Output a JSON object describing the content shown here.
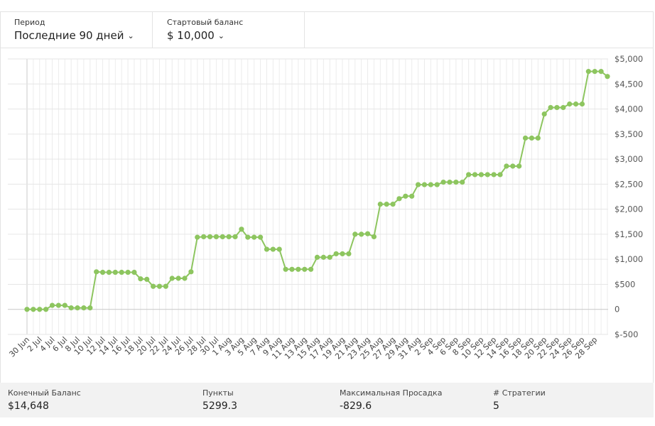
{
  "filters": {
    "period": {
      "label": "Период",
      "value": "Последние 90 дней"
    },
    "start_balance": {
      "label": "Стартовый баланс",
      "value": "$ 10,000"
    }
  },
  "stats": [
    {
      "label": "Конечный Баланс",
      "value": "$14,648"
    },
    {
      "label": "Пункты",
      "value": "5299.3"
    },
    {
      "label": "Максимальная Просадка",
      "value": "-829.6"
    },
    {
      "label": "# Стратегии",
      "value": "5"
    }
  ],
  "chart_data": {
    "type": "line",
    "ylim": [
      -500,
      5000
    ],
    "yticks": [
      -500,
      0,
      500,
      1000,
      1500,
      2000,
      2500,
      3000,
      3500,
      4000,
      4500,
      5000
    ],
    "ytick_labels": [
      "$-500",
      "0",
      "$500",
      "$1,000",
      "$1,500",
      "$2,000",
      "$2,500",
      "$3,000",
      "$3,500",
      "$4,000",
      "$4,500",
      "$5,000"
    ],
    "x_labels": [
      "30 Jun",
      "2 Jul",
      "4 Jul",
      "6 Jul",
      "8 Jul",
      "10 Jul",
      "12 Jul",
      "14 Jul",
      "16 Jul",
      "18 Jul",
      "20 Jul",
      "22 Jul",
      "24 Jul",
      "26 Jul",
      "28 Jul",
      "30 Jul",
      "1 Aug",
      "3 Aug",
      "5 Aug",
      "7 Aug",
      "9 Aug",
      "11 Aug",
      "13 Aug",
      "15 Aug",
      "17 Aug",
      "19 Aug",
      "21 Aug",
      "23 Aug",
      "25 Aug",
      "27 Aug",
      "29 Aug",
      "31 Aug",
      "2 Sep",
      "4 Sep",
      "6 Sep",
      "8 Sep",
      "10 Sep",
      "12 Sep",
      "14 Sep",
      "16 Sep",
      "18 Sep",
      "20 Sep",
      "22 Sep",
      "24 Sep",
      "26 Sep",
      "28 Sep"
    ],
    "grid": true,
    "color": "#8dc55f",
    "series": [
      {
        "values": [
          0,
          0,
          0,
          0,
          80,
          80,
          80,
          30,
          30,
          30,
          30,
          750,
          740,
          740,
          740,
          740,
          740,
          740,
          610,
          600,
          460,
          460,
          460,
          620,
          620,
          620,
          750,
          1440,
          1450,
          1450,
          1450,
          1450,
          1450,
          1450,
          1600,
          1440,
          1440,
          1440,
          1200,
          1200,
          1200,
          800,
          800,
          800,
          800,
          800,
          1040,
          1040,
          1040,
          1110,
          1110,
          1110,
          1500,
          1500,
          1510,
          1450,
          2100,
          2100,
          2100,
          2210,
          2260,
          2260,
          2490,
          2490,
          2490,
          2490,
          2540,
          2540,
          2540,
          2540,
          2690,
          2690,
          2690,
          2690,
          2690,
          2690,
          2860,
          2860,
          2860,
          3420,
          3420,
          3420,
          3900,
          4030,
          4030,
          4030,
          4100,
          4100,
          4100,
          4750,
          4750,
          4750,
          4650
        ]
      }
    ]
  }
}
